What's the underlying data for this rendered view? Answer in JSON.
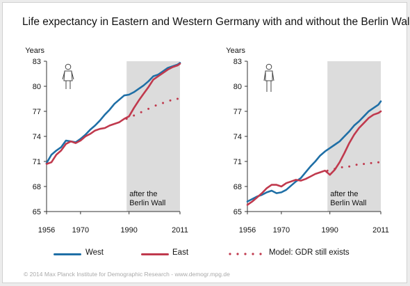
{
  "title": "Life expectancy in Eastern and Western Germany with and without the Berlin Wall",
  "legend": {
    "west": "West",
    "east": "East",
    "model": "Model: GDR still exists"
  },
  "copyright": "©  2014 Max Planck Institute for Demographic Research - www.demogr.mpg.de",
  "colors": {
    "west": "#1f6fa6",
    "east": "#c0394d",
    "shade": "#dcdcdc"
  },
  "chart_data": [
    {
      "type": "line",
      "panel": "female",
      "icon": "female-person-icon",
      "ylabel": "Years",
      "xlim": [
        1956,
        2011
      ],
      "ylim": [
        65,
        83
      ],
      "yticks": [
        65,
        68,
        71,
        74,
        77,
        80,
        83
      ],
      "xticks": [
        1956,
        1970,
        1990,
        2011
      ],
      "shade_from": 1989,
      "annotation": [
        "after the",
        "Berlin Wall"
      ],
      "series": [
        {
          "name": "West",
          "key": "west",
          "x": [
            1956,
            1958,
            1960,
            1962,
            1964,
            1966,
            1968,
            1970,
            1972,
            1974,
            1976,
            1978,
            1980,
            1982,
            1984,
            1986,
            1988,
            1990,
            1992,
            1994,
            1996,
            1998,
            2000,
            2002,
            2004,
            2006,
            2008,
            2010,
            2011
          ],
          "y": [
            70.8,
            71.8,
            72.3,
            72.7,
            73.5,
            73.4,
            73.3,
            73.7,
            74.2,
            74.8,
            75.3,
            75.9,
            76.6,
            77.2,
            77.9,
            78.4,
            78.9,
            79.0,
            79.3,
            79.7,
            80.1,
            80.6,
            81.2,
            81.4,
            81.8,
            82.2,
            82.4,
            82.6,
            82.8
          ]
        },
        {
          "name": "East",
          "key": "east",
          "x": [
            1956,
            1958,
            1960,
            1962,
            1964,
            1966,
            1968,
            1970,
            1972,
            1974,
            1976,
            1978,
            1980,
            1982,
            1984,
            1986,
            1988,
            1990,
            1992,
            1994,
            1996,
            1998,
            2000,
            2002,
            2004,
            2006,
            2008,
            2010,
            2011
          ],
          "y": [
            70.7,
            70.9,
            71.8,
            72.3,
            73.1,
            73.4,
            73.2,
            73.5,
            74.0,
            74.3,
            74.7,
            74.9,
            75.0,
            75.3,
            75.5,
            75.7,
            76.1,
            76.4,
            77.4,
            78.3,
            79.1,
            79.9,
            80.8,
            81.2,
            81.6,
            82.0,
            82.3,
            82.5,
            82.7
          ]
        },
        {
          "name": "Model: GDR still exists",
          "key": "model",
          "x": [
            1989,
            1992,
            1995,
            1998,
            2001,
            2004,
            2007,
            2010
          ],
          "y": [
            76.1,
            76.5,
            76.9,
            77.3,
            77.7,
            78.0,
            78.3,
            78.5
          ]
        }
      ]
    },
    {
      "type": "line",
      "panel": "male",
      "icon": "male-person-icon",
      "ylabel": "Years",
      "xlim": [
        1956,
        2011
      ],
      "ylim": [
        65,
        83
      ],
      "yticks": [
        65,
        68,
        71,
        74,
        77,
        80,
        83
      ],
      "xticks": [
        1956,
        1970,
        1990,
        2011
      ],
      "shade_from": 1989,
      "annotation": [
        "after the",
        "Berlin Wall"
      ],
      "series": [
        {
          "name": "West",
          "key": "west",
          "x": [
            1956,
            1958,
            1960,
            1962,
            1964,
            1966,
            1968,
            1970,
            1972,
            1974,
            1976,
            1978,
            1980,
            1982,
            1984,
            1986,
            1988,
            1990,
            1992,
            1994,
            1996,
            1998,
            2000,
            2002,
            2004,
            2006,
            2008,
            2010,
            2011
          ],
          "y": [
            66.2,
            66.5,
            66.8,
            67.0,
            67.3,
            67.5,
            67.2,
            67.3,
            67.6,
            68.1,
            68.6,
            69.0,
            69.7,
            70.4,
            71.0,
            71.7,
            72.2,
            72.6,
            73.0,
            73.4,
            74.0,
            74.6,
            75.3,
            75.8,
            76.4,
            77.0,
            77.4,
            77.8,
            78.2
          ]
        },
        {
          "name": "East",
          "key": "east",
          "x": [
            1956,
            1958,
            1960,
            1962,
            1964,
            1966,
            1968,
            1970,
            1972,
            1974,
            1976,
            1978,
            1980,
            1982,
            1984,
            1986,
            1988,
            1990,
            1992,
            1994,
            1996,
            1998,
            2000,
            2002,
            2004,
            2006,
            2008,
            2010,
            2011
          ],
          "y": [
            65.8,
            66.2,
            66.7,
            67.2,
            67.8,
            68.2,
            68.2,
            68.0,
            68.4,
            68.6,
            68.8,
            68.7,
            68.9,
            69.2,
            69.5,
            69.7,
            69.9,
            69.4,
            70.0,
            70.9,
            72.0,
            73.2,
            74.2,
            75.0,
            75.6,
            76.2,
            76.6,
            76.8,
            77.0
          ]
        },
        {
          "name": "Model: GDR still exists",
          "key": "model",
          "x": [
            1989,
            1992,
            1995,
            1998,
            2001,
            2004,
            2007,
            2010
          ],
          "y": [
            69.9,
            70.1,
            70.3,
            70.4,
            70.6,
            70.7,
            70.8,
            70.9
          ]
        }
      ]
    }
  ]
}
